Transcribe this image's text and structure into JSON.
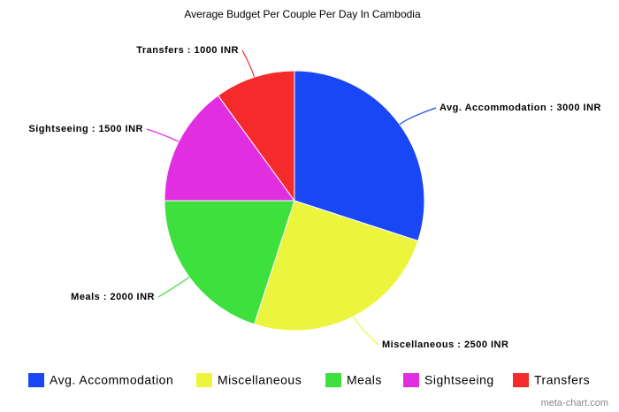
{
  "chart_data": {
    "type": "pie",
    "title": "Average Budget Per Couple Per Day In Cambodia",
    "categories": [
      "Avg. Accommodation",
      "Miscellaneous",
      "Meals",
      "Sightseeing",
      "Transfers"
    ],
    "values": [
      3000,
      2500,
      2000,
      1500,
      1000
    ],
    "value_labels": [
      "Avg. Accommodation : 3000 INR",
      "Miscellaneous : 2500 INR",
      "Meals : 2000 INR",
      "Sightseeing : 1500 INR",
      "Transfers : 1000 INR"
    ],
    "colors": [
      "#1a47f5",
      "#ecf53d",
      "#3de03d",
      "#e02ee0",
      "#f52a2a"
    ],
    "legend": "bottom"
  },
  "watermark": "meta-chart.com"
}
